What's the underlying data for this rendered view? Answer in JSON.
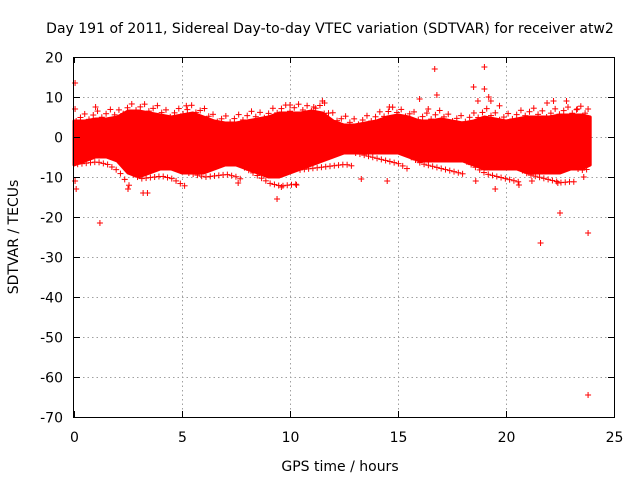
{
  "chart_data": {
    "type": "scatter",
    "title": "Day 191 of 2011, Sidereal Day-to-day VTEC variation (SDTVAR) for receiver atw2",
    "xlabel": "GPS time / hours",
    "ylabel": "SDTVAR / TECUs",
    "xlim": [
      0,
      25
    ],
    "ylim": [
      -70,
      20
    ],
    "xticks": [
      "0",
      "5",
      "10",
      "15",
      "20",
      "25"
    ],
    "yticks": [
      "20",
      "10",
      "0",
      "-10",
      "-20",
      "-30",
      "-40",
      "-50",
      "-60",
      "-70"
    ],
    "grid": true,
    "marker": "+",
    "color": "#ff0000",
    "band": {
      "x": [
        0.0,
        0.5,
        1.0,
        1.5,
        2.0,
        2.5,
        3.0,
        3.5,
        4.0,
        4.5,
        5.0,
        5.5,
        6.0,
        6.5,
        7.0,
        7.5,
        8.0,
        8.5,
        9.0,
        9.5,
        10.0,
        10.5,
        11.0,
        11.5,
        12.0,
        12.5,
        13.0,
        13.5,
        14.0,
        14.5,
        15.0,
        15.5,
        16.0,
        16.5,
        17.0,
        17.5,
        18.0,
        18.5,
        19.0,
        19.5,
        20.0,
        20.5,
        21.0,
        21.5,
        22.0,
        22.5,
        23.0,
        23.5,
        23.9
      ],
      "upper": [
        4,
        4,
        4.5,
        4.5,
        5,
        6.5,
        6.5,
        6,
        5.5,
        5,
        5.5,
        6,
        5,
        4,
        3.5,
        3.5,
        4,
        4.5,
        5,
        6,
        6,
        6,
        6.5,
        6,
        4,
        3,
        3,
        3.5,
        4,
        5,
        5.5,
        5,
        4,
        4,
        4.5,
        4,
        3.5,
        4,
        5,
        4.5,
        4,
        4.5,
        5,
        5,
        5,
        5.5,
        5.5,
        5.5,
        5
      ],
      "lower": [
        -7,
        -6,
        -5,
        -5,
        -6,
        -9,
        -10,
        -9,
        -8,
        -8,
        -9,
        -9,
        -9,
        -8,
        -7,
        -7,
        -8,
        -9,
        -10,
        -10,
        -9,
        -8,
        -7,
        -6,
        -5,
        -4,
        -4,
        -4,
        -4,
        -4,
        -4,
        -5,
        -6,
        -6,
        -6,
        -6,
        -6,
        -7,
        -8,
        -8,
        -8,
        -8,
        -9,
        -9,
        -9,
        -9,
        -8,
        -8,
        -7
      ]
    },
    "points": [
      [
        0.05,
        13.5
      ],
      [
        0.05,
        7
      ],
      [
        0.05,
        -11
      ],
      [
        0.1,
        -13
      ],
      [
        1.2,
        -21.5
      ],
      [
        1.0,
        7.5
      ],
      [
        2.5,
        -13
      ],
      [
        3.2,
        -14
      ],
      [
        3.4,
        -14
      ],
      [
        5.2,
        7.8
      ],
      [
        7.6,
        -11.5
      ],
      [
        9.4,
        -15.5
      ],
      [
        9.6,
        -12.5
      ],
      [
        10.0,
        8
      ],
      [
        10.3,
        -12
      ],
      [
        11.1,
        7.5
      ],
      [
        11.5,
        9
      ],
      [
        11.6,
        8.5
      ],
      [
        14.5,
        -11
      ],
      [
        14.6,
        7.5
      ],
      [
        16.0,
        9.5
      ],
      [
        16.4,
        7
      ],
      [
        16.7,
        17
      ],
      [
        16.8,
        10.5
      ],
      [
        18.5,
        12.5
      ],
      [
        18.7,
        9
      ],
      [
        19.0,
        17.5
      ],
      [
        19.0,
        12
      ],
      [
        19.2,
        10
      ],
      [
        19.3,
        9
      ],
      [
        19.5,
        -13
      ],
      [
        18.6,
        -11
      ],
      [
        19.7,
        7.8
      ],
      [
        21.6,
        -26.5
      ],
      [
        22.4,
        -11.5
      ],
      [
        22.5,
        -19
      ],
      [
        21.9,
        8.5
      ],
      [
        22.2,
        9
      ],
      [
        22.8,
        9
      ],
      [
        23.3,
        7
      ],
      [
        23.8,
        7
      ],
      [
        23.8,
        -24
      ],
      [
        23.8,
        -64.5
      ],
      [
        23.6,
        -10
      ],
      [
        20.6,
        -12
      ],
      [
        21.2,
        -11
      ],
      [
        13.3,
        -10.5
      ]
    ]
  }
}
